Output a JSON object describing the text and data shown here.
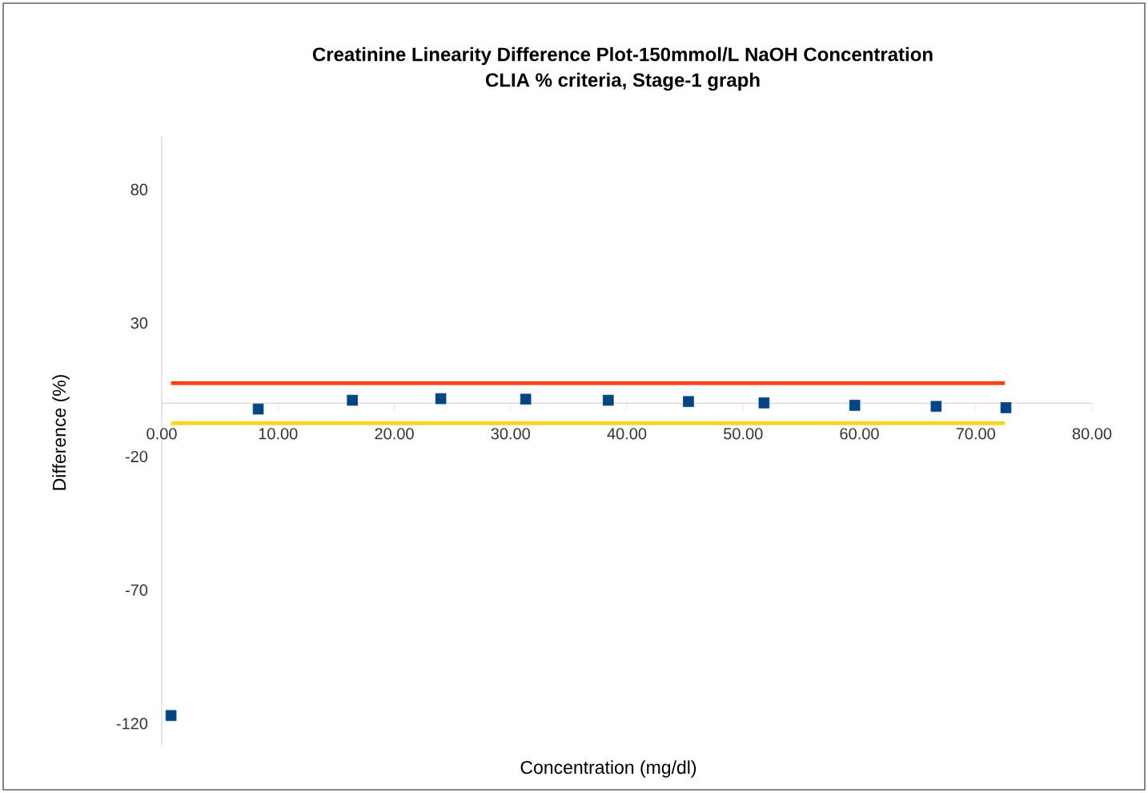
{
  "chart_data": {
    "type": "scatter",
    "title": "Creatinine Linearity Difference Plot-150mmol/L NaOH Concentration\nCLIA % criteria, Stage-1 graph",
    "xlabel": "Concentration (mg/dl)",
    "ylabel": "Difference (%)",
    "xlim": [
      0,
      80
    ],
    "ylim": [
      -128,
      100
    ],
    "xticks": [
      {
        "value": 0,
        "label": "0.00"
      },
      {
        "value": 10,
        "label": "10.00"
      },
      {
        "value": 20,
        "label": "20.00"
      },
      {
        "value": 30,
        "label": "30.00"
      },
      {
        "value": 40,
        "label": "40.00"
      },
      {
        "value": 50,
        "label": "50.00"
      },
      {
        "value": 60,
        "label": "60.00"
      },
      {
        "value": 70,
        "label": "70.00"
      },
      {
        "value": 80,
        "label": "80.00"
      }
    ],
    "yticks": [
      -120,
      -70,
      -20,
      30,
      80
    ],
    "grid": false,
    "series": [
      {
        "color": "#004586",
        "marker": "square",
        "x": [
          0.8,
          8.3,
          16.4,
          24.0,
          31.3,
          38.4,
          45.3,
          51.8,
          59.6,
          66.6,
          72.6
        ],
        "values": [
          -117,
          -2.2,
          1.1,
          1.7,
          1.5,
          1.1,
          0.6,
          0.1,
          -0.8,
          -1.2,
          -1.7
        ]
      },
      {
        "type": "line",
        "color": "#ff420e",
        "x": [
          0.8,
          72.5
        ],
        "values": [
          7.5,
          7.5
        ]
      },
      {
        "type": "line",
        "color": "#ffd320",
        "x": [
          0.8,
          72.5
        ],
        "values": [
          -7.5,
          -7.5
        ]
      }
    ]
  }
}
